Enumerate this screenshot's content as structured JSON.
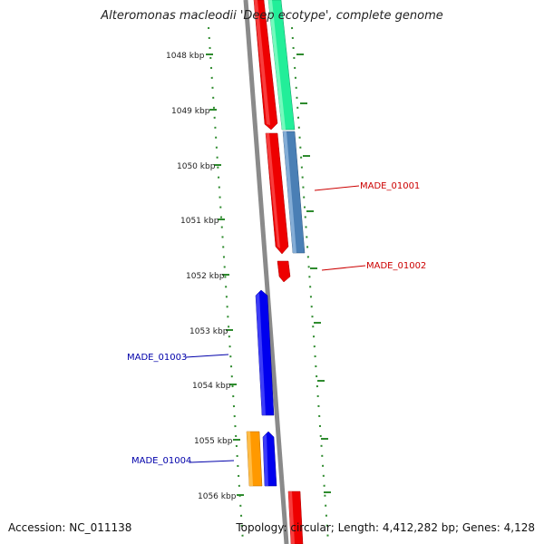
{
  "title": "Alteromonas macleodii 'Deep ecotype', complete genome",
  "accession_label": "Accession: NC_011138",
  "topology_label": "Topology: circular; Length: 4,412,282 bp; Genes: 4,128",
  "colors": {
    "backbone": "#8a8a8a",
    "tick": "#2e8b2e",
    "red_gene": "#ee0000",
    "green_gene": "#22ee99",
    "steel_gene": "#4a7fb5",
    "blue_gene": "#0000ee",
    "orange_gene": "#ff9900",
    "label_red": "#cc0000",
    "label_blue": "#0000aa"
  },
  "kbp_labels": [
    "1048 kbp",
    "1049 kbp",
    "1050 kbp",
    "1051 kbp",
    "1052 kbp",
    "1053 kbp",
    "1054 kbp",
    "1055 kbp",
    "1056 kbp"
  ],
  "genes": [
    {
      "id": "MADE_01001",
      "label": "MADE_01001",
      "color": "#4a7fb5"
    },
    {
      "id": "MADE_01002",
      "label": "MADE_01002",
      "color": "#ee0000"
    },
    {
      "id": "MADE_01003",
      "label": "MADE_01003",
      "color": "#0000ee"
    },
    {
      "id": "MADE_01004",
      "label": "MADE_01004",
      "color": "#0000ee"
    }
  ]
}
